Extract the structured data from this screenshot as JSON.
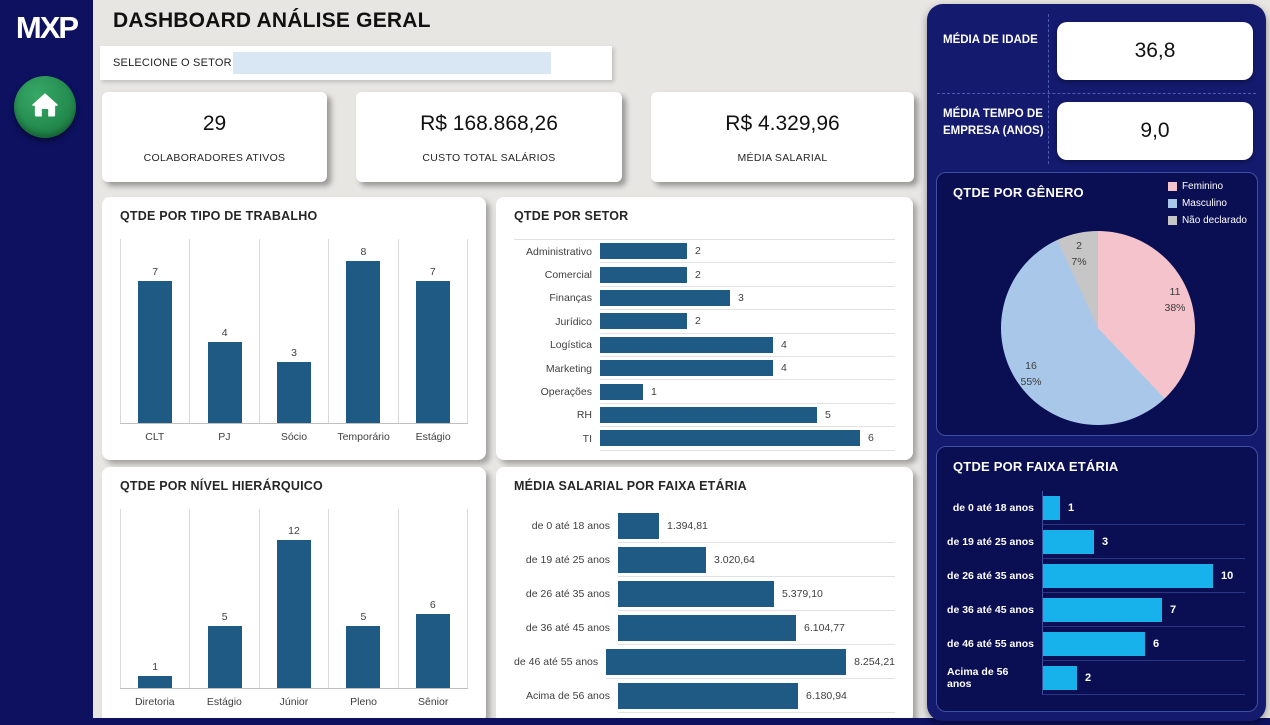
{
  "sidebar": {
    "logo": "MXP"
  },
  "header": {
    "title": "DASHBOARD ANÁLISE GERAL",
    "slicer_label": "SELECIONE O SETOR",
    "slicer_value": ""
  },
  "kpis": [
    {
      "value": "29",
      "label": "COLABORADORES ATIVOS"
    },
    {
      "value": "R$ 168.868,26",
      "label": "CUSTO TOTAL SALÁRIOS"
    },
    {
      "value": "R$ 4.329,96",
      "label": "MÉDIA SALARIAL"
    }
  ],
  "right_kpis": [
    {
      "label": "MÉDIA DE IDADE",
      "value": "36,8"
    },
    {
      "label": "MÉDIA TEMPO DE EMPRESA (ANOS)",
      "value": "9,0"
    }
  ],
  "colors": {
    "navy_sidebar": "#0D1160",
    "navy_panel": "#141A6E",
    "navy_subpanel": "#0A0E52",
    "bar_blue": "#1F5A84",
    "cyan": "#17B2EC",
    "pie_pink": "#F5C3CC",
    "pie_blue": "#A9C8E9",
    "pie_gray": "#C6C6C6",
    "slicer_blue": "#D9E7F5"
  },
  "chart_data": [
    {
      "id": "tipo",
      "type": "bar",
      "title": "QTDE POR TIPO DE TRABALHO",
      "categories": [
        "CLT",
        "PJ",
        "Sócio",
        "Temporário",
        "Estágio"
      ],
      "values": [
        7,
        4,
        3,
        8,
        7
      ],
      "ylim": [
        0,
        8
      ],
      "grid": "vertical",
      "bar_color": "#1F5A84"
    },
    {
      "id": "setor",
      "type": "bar-h",
      "title": "QTDE POR SETOR",
      "categories": [
        "Administrativo",
        "Comercial",
        "Finanças",
        "Jurídico",
        "Logística",
        "Marketing",
        "Operações",
        "RH",
        "TI"
      ],
      "values": [
        2,
        2,
        3,
        2,
        4,
        4,
        1,
        5,
        6
      ],
      "xlim": [
        0,
        6
      ],
      "grid": "horizontal",
      "bar_color": "#1F5A84"
    },
    {
      "id": "nivel",
      "type": "bar",
      "title": "QTDE POR NÍVEL HIERÁRQUICO",
      "categories": [
        "Diretoria",
        "Estágio",
        "Júnior",
        "Pleno",
        "Sênior"
      ],
      "values": [
        1,
        5,
        12,
        5,
        6
      ],
      "ylim": [
        0,
        12
      ],
      "grid": "vertical",
      "bar_color": "#1F5A84"
    },
    {
      "id": "salario",
      "type": "bar-h",
      "title": "MÉDIA SALARIAL POR FAIXA ETÁRIA",
      "categories": [
        "de 0 até 18 anos",
        "de 19 até 25 anos",
        "de 26 até 35 anos",
        "de 36 até 45 anos",
        "de 46 até 55 anos",
        "Acima de 56 anos"
      ],
      "values": [
        1394.81,
        3020.64,
        5379.1,
        6104.77,
        8254.21,
        6180.94
      ],
      "value_labels": [
        "1.394,81",
        "3.020,64",
        "5.379,10",
        "6.104,77",
        "8.254,21",
        "6.180,94"
      ],
      "xlim": [
        0,
        8254.21
      ],
      "grid": "horizontal",
      "bar_color": "#1F5A84"
    },
    {
      "id": "genero",
      "type": "pie",
      "title": "QTDE POR GÊNERO",
      "labels": [
        "Feminino",
        "Masculino",
        "Não declarado"
      ],
      "values": [
        11,
        16,
        2
      ],
      "pct_labels": [
        "38%",
        "55%",
        "7%"
      ],
      "slice_colors": [
        "#F5C3CC",
        "#A9C8E9",
        "#C6C6C6"
      ],
      "legend_position": "top-right",
      "start_angle_deg": 0
    },
    {
      "id": "faixa",
      "type": "bar-h",
      "title": "QTDE POR FAIXA ETÁRIA",
      "categories": [
        "de 0 até 18 anos",
        "de 19 até 25 anos",
        "de 26 até 35 anos",
        "de 36 até 45 anos",
        "de 46 até 55 anos",
        "Acima de 56 anos"
      ],
      "values": [
        1,
        3,
        10,
        7,
        6,
        2
      ],
      "xlim": [
        0,
        10
      ],
      "grid": "horizontal",
      "bar_color": "#17B2EC"
    }
  ]
}
